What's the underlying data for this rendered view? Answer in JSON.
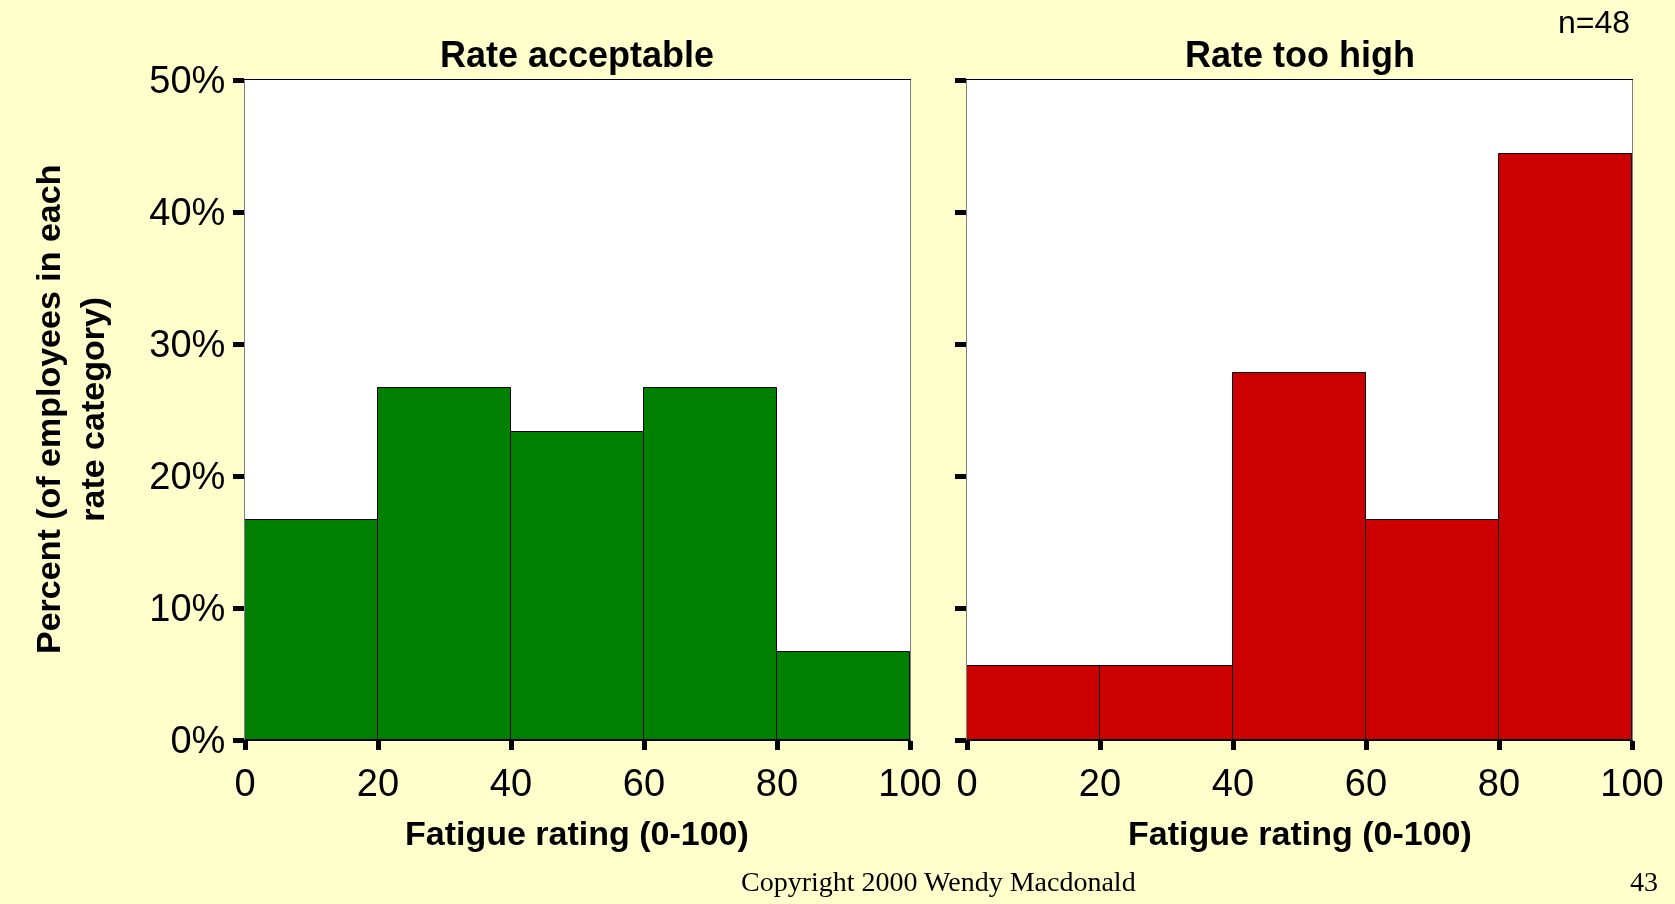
{
  "chart_data": [
    {
      "type": "histogram",
      "title": "Rate acceptable",
      "xlabel": "Fatigue rating (0-100)",
      "ylabel": "Percent (of employees in each rate category)",
      "bins": [
        0,
        20,
        40,
        60,
        80,
        100
      ],
      "values": [
        16.7,
        26.7,
        23.3,
        26.7,
        6.7
      ],
      "color": "#008000",
      "xlim": [
        0,
        100
      ],
      "xticks": [
        0,
        20,
        40,
        60,
        80,
        100
      ],
      "ylim": [
        0,
        50
      ],
      "yticks": [
        {
          "value": 0,
          "label": "0%"
        },
        {
          "value": 10,
          "label": "10%"
        },
        {
          "value": 20,
          "label": "20%"
        },
        {
          "value": 30,
          "label": "30%"
        },
        {
          "value": 40,
          "label": "40%"
        },
        {
          "value": 50,
          "label": "50%"
        }
      ]
    },
    {
      "type": "histogram",
      "title": "Rate too high",
      "xlabel": "Fatigue rating (0-100)",
      "bins": [
        0,
        20,
        40,
        60,
        80,
        100
      ],
      "values": [
        5.6,
        5.6,
        27.8,
        16.7,
        44.4
      ],
      "color": "#cc0000",
      "xlim": [
        0,
        100
      ],
      "xticks": [
        0,
        20,
        40,
        60,
        80,
        100
      ],
      "ylim": [
        0,
        50
      ],
      "yticks": [
        0,
        10,
        20,
        30,
        40,
        50
      ],
      "tick_labels": "x",
      "annotations": [
        "n=48",
        "Copyright 2000 Wendy Macdonald",
        "43"
      ]
    }
  ]
}
